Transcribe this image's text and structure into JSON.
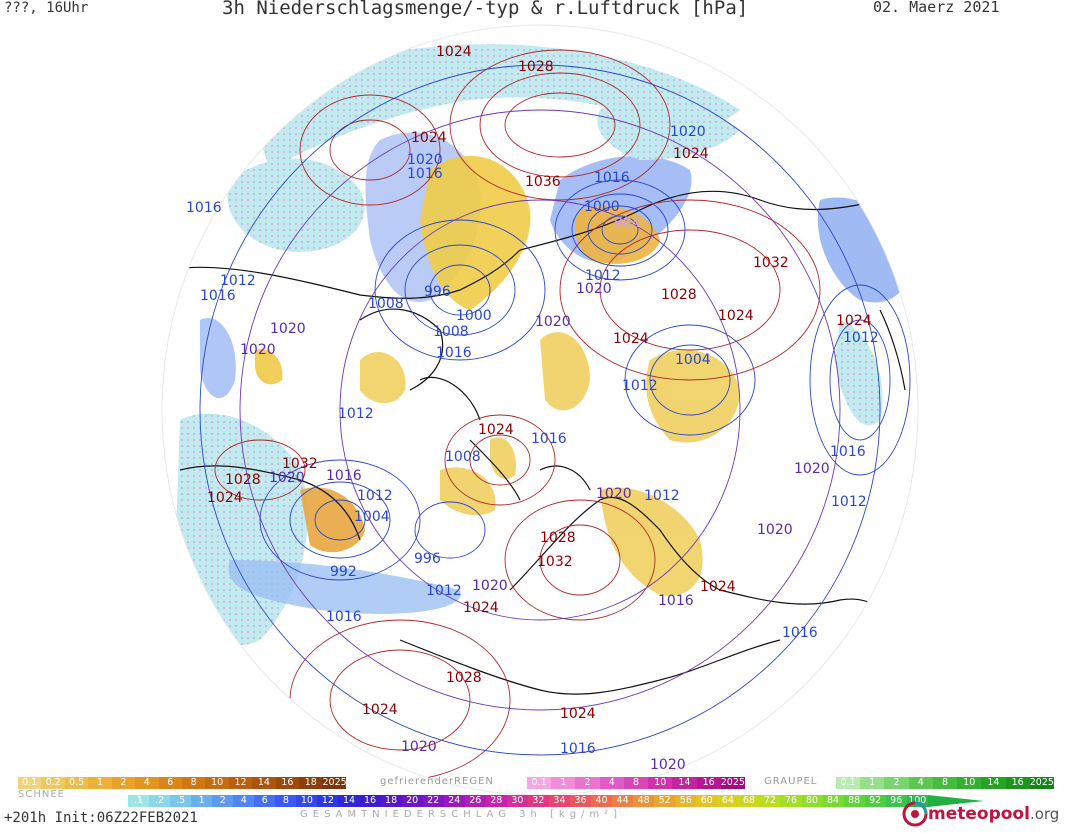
{
  "header": {
    "left": "???, 16Uhr",
    "title": "3h Niederschlagsmenge/-typ & r.Luftdruck [hPa]",
    "date": "02. Maerz 2021"
  },
  "map": {
    "isobar_labels": [
      {
        "text": "1024",
        "kind": "high",
        "lon_lat_hint": "n-pacific-top"
      },
      {
        "text": "1028",
        "kind": "high"
      },
      {
        "text": "1024",
        "kind": "high"
      },
      {
        "text": "1020",
        "kind": "low"
      },
      {
        "text": "1016",
        "kind": "low"
      },
      {
        "text": "1036",
        "kind": "high"
      },
      {
        "text": "1016",
        "kind": "low"
      },
      {
        "text": "1016",
        "kind": "low"
      },
      {
        "text": "1020",
        "kind": "low"
      },
      {
        "text": "1024",
        "kind": "high"
      },
      {
        "text": "1000",
        "kind": "low"
      },
      {
        "text": "984",
        "kind": "faint"
      },
      {
        "text": "1012",
        "kind": "low"
      },
      {
        "text": "1016",
        "kind": "low"
      },
      {
        "text": "1008",
        "kind": "low"
      },
      {
        "text": "996",
        "kind": "low"
      },
      {
        "text": "1012",
        "kind": "low"
      },
      {
        "text": "1020",
        "kind": "mid"
      },
      {
        "text": "1028",
        "kind": "high"
      },
      {
        "text": "1032",
        "kind": "high"
      },
      {
        "text": "1024",
        "kind": "high"
      },
      {
        "text": "1000",
        "kind": "low"
      },
      {
        "text": "1008",
        "kind": "low"
      },
      {
        "text": "1020",
        "kind": "mid"
      },
      {
        "text": "1024",
        "kind": "high"
      },
      {
        "text": "1020",
        "kind": "mid"
      },
      {
        "text": "1016",
        "kind": "low"
      },
      {
        "text": "1020",
        "kind": "mid"
      },
      {
        "text": "1004",
        "kind": "low"
      },
      {
        "text": "1024",
        "kind": "high"
      },
      {
        "text": "1012",
        "kind": "low"
      },
      {
        "text": "1012",
        "kind": "low"
      },
      {
        "text": "1012",
        "kind": "low"
      },
      {
        "text": "1024",
        "kind": "high"
      },
      {
        "text": "1016",
        "kind": "low"
      },
      {
        "text": "1008",
        "kind": "low"
      },
      {
        "text": "1032",
        "kind": "high"
      },
      {
        "text": "1028",
        "kind": "high"
      },
      {
        "text": "1020",
        "kind": "mid"
      },
      {
        "text": "1016",
        "kind": "mid"
      },
      {
        "text": "1024",
        "kind": "high"
      },
      {
        "text": "1012",
        "kind": "low"
      },
      {
        "text": "1004",
        "kind": "low"
      },
      {
        "text": "1020",
        "kind": "mid"
      },
      {
        "text": "1012",
        "kind": "low"
      },
      {
        "text": "1016",
        "kind": "low"
      },
      {
        "text": "1020",
        "kind": "mid"
      },
      {
        "text": "1012",
        "kind": "low"
      },
      {
        "text": "996",
        "kind": "low"
      },
      {
        "text": "1028",
        "kind": "high"
      },
      {
        "text": "1032",
        "kind": "high"
      },
      {
        "text": "992",
        "kind": "low"
      },
      {
        "text": "1012",
        "kind": "low"
      },
      {
        "text": "1020",
        "kind": "mid"
      },
      {
        "text": "1024",
        "kind": "high"
      },
      {
        "text": "1020",
        "kind": "mid"
      },
      {
        "text": "1024",
        "kind": "high"
      },
      {
        "text": "1016",
        "kind": "low"
      },
      {
        "text": "1016",
        "kind": "low"
      },
      {
        "text": "1016",
        "kind": "low"
      },
      {
        "text": "1028",
        "kind": "high"
      },
      {
        "text": "1024",
        "kind": "high"
      },
      {
        "text": "1024",
        "kind": "high"
      },
      {
        "text": "1020",
        "kind": "low"
      },
      {
        "text": "1016",
        "kind": "low"
      },
      {
        "text": "1020",
        "kind": "low"
      },
      {
        "text": "1024",
        "kind": "high"
      }
    ]
  },
  "legend": {
    "snow": {
      "title": "SCHNEE",
      "cells": [
        {
          "t": "0.1",
          "c": "#f2d27a"
        },
        {
          "t": "0.2",
          "c": "#f0c860"
        },
        {
          "t": "0.5",
          "c": "#eebd48"
        },
        {
          "t": "1",
          "c": "#ecb238"
        },
        {
          "t": "2",
          "c": "#e8a42a"
        },
        {
          "t": "4",
          "c": "#e2951e"
        },
        {
          "t": "6",
          "c": "#d98616"
        },
        {
          "t": "8",
          "c": "#cf7812"
        },
        {
          "t": "10",
          "c": "#c46c10"
        },
        {
          "t": "12",
          "c": "#b8600e"
        },
        {
          "t": "14",
          "c": "#ab550c"
        },
        {
          "t": "16",
          "c": "#9c4a0a"
        },
        {
          "t": "18",
          "c": "#8c4008"
        },
        {
          "t": "2025+",
          "c": "#7a3606"
        }
      ]
    },
    "freezing_rain": {
      "title": "gefrierenderREGEN",
      "cells": [
        {
          "t": "0.1",
          "c": "#f6a8e4"
        },
        {
          "t": "1",
          "c": "#f08cda"
        },
        {
          "t": "2",
          "c": "#e874ce"
        },
        {
          "t": "4",
          "c": "#e05cc4"
        },
        {
          "t": "8",
          "c": "#d846b8"
        },
        {
          "t": "10",
          "c": "#d032ac"
        },
        {
          "t": "14",
          "c": "#c422a0"
        },
        {
          "t": "16",
          "c": "#b61692"
        },
        {
          "t": "2025+",
          "c": "#a00c80"
        }
      ]
    },
    "graupel": {
      "title": "GRAUPEL",
      "cells": [
        {
          "t": "0.1",
          "c": "#b6ecae"
        },
        {
          "t": "1",
          "c": "#96e08c"
        },
        {
          "t": "2",
          "c": "#78d46c"
        },
        {
          "t": "4",
          "c": "#5cc852"
        },
        {
          "t": "8",
          "c": "#46bc3e"
        },
        {
          "t": "10",
          "c": "#34b030"
        },
        {
          "t": "14",
          "c": "#26a226"
        },
        {
          "t": "16",
          "c": "#1c941e"
        },
        {
          "t": "2025+",
          "c": "#148418"
        }
      ]
    },
    "total": {
      "title": "GESAMTNIEDERSCHLAG 3h [kg/m²]",
      "cells": [
        {
          "t": ".1",
          "c": "#9ee6e6"
        },
        {
          "t": ".2",
          "c": "#8ad8e8"
        },
        {
          "t": ".5",
          "c": "#78c6ec"
        },
        {
          "t": "1",
          "c": "#6ab0f0"
        },
        {
          "t": "2",
          "c": "#5e9af2"
        },
        {
          "t": "4",
          "c": "#5284f2"
        },
        {
          "t": "6",
          "c": "#466ef2"
        },
        {
          "t": "8",
          "c": "#3c5af0"
        },
        {
          "t": "10",
          "c": "#3448ea"
        },
        {
          "t": "12",
          "c": "#2c38e2"
        },
        {
          "t": "14",
          "c": "#3028d6"
        },
        {
          "t": "16",
          "c": "#3c1ccc"
        },
        {
          "t": "18",
          "c": "#5418c8"
        },
        {
          "t": "20",
          "c": "#6c16c6"
        },
        {
          "t": "22",
          "c": "#8416c4"
        },
        {
          "t": "24",
          "c": "#9c18c0"
        },
        {
          "t": "26",
          "c": "#b41cb8"
        },
        {
          "t": "28",
          "c": "#c822aa"
        },
        {
          "t": "30",
          "c": "#d82c98"
        },
        {
          "t": "32",
          "c": "#e23884"
        },
        {
          "t": "34",
          "c": "#e84670"
        },
        {
          "t": "36",
          "c": "#ec565e"
        },
        {
          "t": "40",
          "c": "#ee6a50"
        },
        {
          "t": "44",
          "c": "#ee7e44"
        },
        {
          "t": "48",
          "c": "#ee923a"
        },
        {
          "t": "52",
          "c": "#eca430"
        },
        {
          "t": "56",
          "c": "#e8b42a"
        },
        {
          "t": "60",
          "c": "#e2c424"
        },
        {
          "t": "64",
          "c": "#d8d020"
        },
        {
          "t": "68",
          "c": "#cad81e"
        },
        {
          "t": "72",
          "c": "#b8de1e"
        },
        {
          "t": "76",
          "c": "#a4e020"
        },
        {
          "t": "80",
          "c": "#8ede28"
        },
        {
          "t": "84",
          "c": "#78da30"
        },
        {
          "t": "88",
          "c": "#62d43a"
        },
        {
          "t": "92",
          "c": "#4ecc44"
        },
        {
          "t": "96",
          "c": "#3cc24e"
        },
        {
          "t": "100",
          "c": "#2cb656"
        }
      ]
    }
  },
  "footer": {
    "init": "+201h Init:06Z22FEB2021",
    "brand": "meteopool",
    "brand_suffix": ".org"
  }
}
